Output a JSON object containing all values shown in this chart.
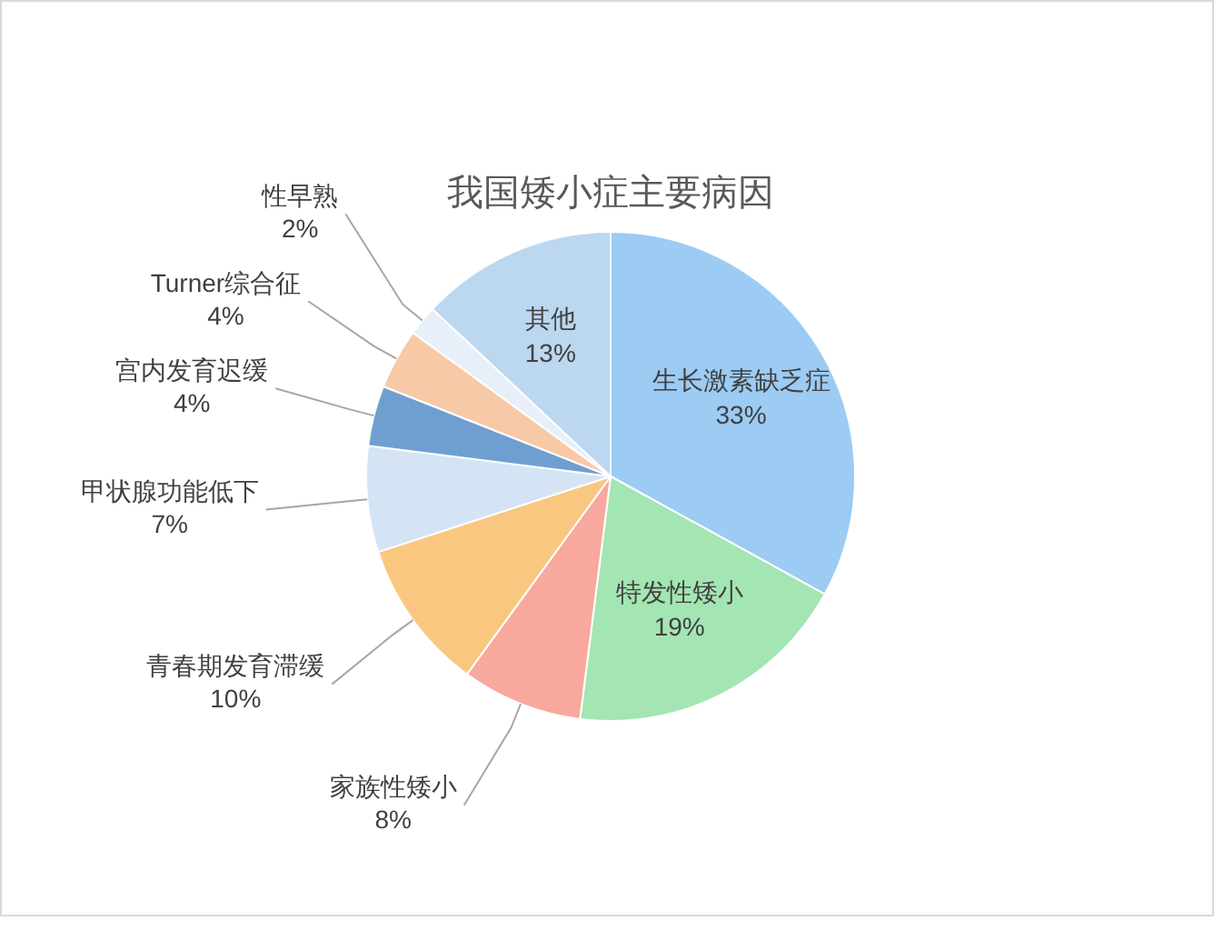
{
  "chart_data": {
    "type": "pie",
    "title": "我国矮小症主要病因",
    "categories": [
      "生长激素缺乏症",
      "特发性矮小",
      "家族性矮小",
      "青春期发育滞缓",
      "甲状腺功能低下",
      "宫内发育迟缓",
      "Turner综合征",
      "性早熟",
      "其他"
    ],
    "values": [
      33,
      19,
      8,
      10,
      7,
      4,
      4,
      2,
      13
    ],
    "value_labels": [
      "33%",
      "19%",
      "8%",
      "10%",
      "7%",
      "4%",
      "4%",
      "2%",
      "13%"
    ],
    "colors": [
      "#9ccbf3",
      "#a3e5b3",
      "#f9a89d",
      "#f9c780",
      "#d4e4f5",
      "#6f9fd0",
      "#f8c9a7",
      "#e7eff9",
      "#bcd7f0"
    ],
    "legend": false
  }
}
